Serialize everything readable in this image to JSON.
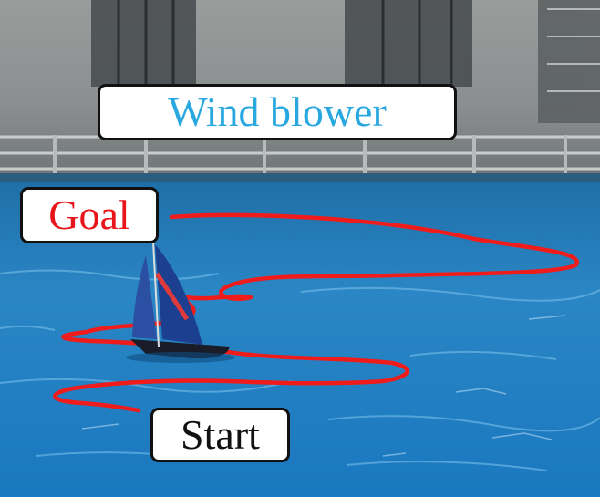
{
  "labels": {
    "wind_blower": "Wind blower",
    "goal": "Goal",
    "start": "Start"
  },
  "colors": {
    "wind_blower_text": "#29a8e0",
    "goal_text": "#e8161b",
    "start_text": "#111111",
    "trajectory": "#f01c1c",
    "water": "#1f7fc0",
    "sail": "#1c3f8f"
  }
}
